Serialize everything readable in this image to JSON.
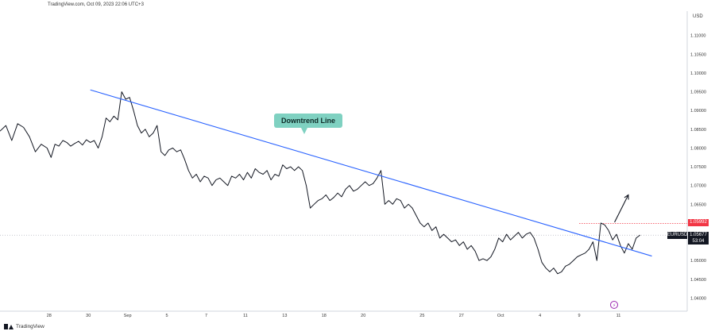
{
  "header": {
    "watermark": "TradingView.com, Oct 09, 2023 22:06 UTC+3"
  },
  "footer": {
    "logo_text": "TradingView"
  },
  "annotation": {
    "trendline_label": "Downtrend Line"
  },
  "price_tags": {
    "resistance": "1.05992",
    "symbol": "EURUSD",
    "current_price": "1.05677",
    "countdown": "53:04"
  },
  "colors": {
    "price_line": "#131722",
    "trendline": "#2962ff",
    "callout": "#7fd1c1",
    "resistance": "#f23645",
    "axis_text": "#333333"
  },
  "chart_data": {
    "type": "line",
    "currency": "USD",
    "y_ticks": [
      "1.11000",
      "1.10500",
      "1.10000",
      "1.09500",
      "1.09000",
      "1.08500",
      "1.08000",
      "1.07500",
      "1.07000",
      "1.06500",
      "1.06000",
      "1.05500",
      "1.05000",
      "1.04500",
      "1.04000"
    ],
    "ylim": [
      1.0365,
      1.1165
    ],
    "x_ticks": [
      "28",
      "30",
      "Sep",
      "5",
      "7",
      "11",
      "13",
      "18",
      "20",
      "25",
      "27",
      "Oct",
      "4",
      "9",
      "11"
    ],
    "x_tick_index": [
      -7,
      -5,
      -3,
      -1,
      1,
      3,
      5,
      7,
      9,
      12,
      14,
      16,
      18,
      20,
      22
    ],
    "xlim": [
      -9.5,
      25.5
    ],
    "resistance_level": 1.05992,
    "current_price": 1.05677,
    "trendline": {
      "from": [
        -4.9,
        1.0955
      ],
      "to": [
        23.7,
        1.0512
      ]
    },
    "arrow": {
      "from": [
        21.8,
        1.0602
      ],
      "to": [
        22.5,
        1.0675
      ]
    },
    "series": [
      {
        "x": [
          -9.5,
          -9.2,
          -8.9,
          -8.6,
          -8.3,
          -8.0,
          -7.7,
          -7.4,
          -7.1,
          -6.9,
          -6.7,
          -6.5,
          -6.3,
          -6.1,
          -5.9,
          -5.7,
          -5.5,
          -5.3,
          -5.1,
          -4.9,
          -4.7,
          -4.5,
          -4.3,
          -4.1,
          -3.9,
          -3.7,
          -3.5,
          -3.3,
          -3.1,
          -2.9,
          -2.7,
          -2.5,
          -2.3,
          -2.1,
          -1.9,
          -1.7,
          -1.5,
          -1.3,
          -1.1,
          -0.9,
          -0.7,
          -0.5,
          -0.3,
          -0.1,
          0.1,
          0.3,
          0.5,
          0.7,
          0.9,
          1.1,
          1.3,
          1.5,
          1.7,
          1.9,
          2.1,
          2.3,
          2.5,
          2.7,
          2.9,
          3.1,
          3.3,
          3.5,
          3.7,
          3.9,
          4.1,
          4.3,
          4.5,
          4.7,
          4.9,
          5.1,
          5.3,
          5.5,
          5.7,
          5.9,
          6.1,
          6.3,
          6.5,
          6.7,
          6.9,
          7.1,
          7.3,
          7.5,
          7.7,
          7.9,
          8.1,
          8.3,
          8.5,
          8.7,
          8.9,
          9.1,
          9.3,
          9.5,
          9.7,
          9.9,
          10.1,
          10.3,
          10.5,
          10.7,
          10.9,
          11.1,
          11.3,
          11.5,
          11.7,
          11.9,
          12.1,
          12.3,
          12.5,
          12.7,
          12.9,
          13.1,
          13.3,
          13.5,
          13.7,
          13.9,
          14.1,
          14.3,
          14.5,
          14.7,
          14.9,
          15.1,
          15.3,
          15.5,
          15.7,
          15.9,
          16.1,
          16.3,
          16.5,
          16.7,
          16.9,
          17.1,
          17.3,
          17.5,
          17.7,
          17.9,
          18.1,
          18.3,
          18.5,
          18.7,
          18.9,
          19.1,
          19.3,
          19.5,
          19.7,
          19.9,
          20.1,
          20.3,
          20.5,
          20.7,
          20.9,
          21.1,
          21.3,
          21.5
        ],
        "y": [
          1.0845,
          1.086,
          1.082,
          1.0865,
          1.0855,
          1.083,
          1.079,
          1.081,
          1.08,
          1.0775,
          1.081,
          1.0805,
          1.082,
          1.0815,
          1.0805,
          1.0812,
          1.0818,
          1.0808,
          1.0822,
          1.0815,
          1.082,
          1.08,
          1.083,
          1.088,
          1.087,
          1.0885,
          1.0875,
          1.095,
          1.093,
          1.0935,
          1.09,
          1.086,
          1.084,
          1.085,
          1.083,
          1.084,
          1.086,
          1.079,
          1.078,
          1.0795,
          1.08,
          1.079,
          1.0795,
          1.077,
          1.074,
          1.072,
          1.073,
          1.071,
          1.0725,
          1.072,
          1.07,
          1.0715,
          1.072,
          1.071,
          1.07,
          1.0725,
          1.072,
          1.073,
          1.0715,
          1.0735,
          1.072,
          1.0745,
          1.0735,
          1.073,
          1.074,
          1.0715,
          1.073,
          1.0725,
          1.0755,
          1.0745,
          1.075,
          1.074,
          1.075,
          1.074,
          1.07,
          1.064,
          1.065,
          1.066,
          1.0665,
          1.0675,
          1.066,
          1.0668,
          1.068,
          1.067,
          1.069,
          1.07,
          1.0685,
          1.069,
          1.07,
          1.071,
          1.07,
          1.0705,
          1.072,
          1.074,
          1.065,
          1.066,
          1.065,
          1.0665,
          1.066,
          1.064,
          1.065,
          1.064,
          1.062,
          1.06,
          1.059,
          1.06,
          1.058,
          1.059,
          1.056,
          1.057,
          1.056,
          1.055,
          1.0555,
          1.054,
          1.055,
          1.053,
          1.054,
          1.0525,
          1.05,
          1.0505,
          1.05,
          1.051,
          1.053,
          1.056,
          1.055,
          1.057,
          1.0555,
          1.0565,
          1.0575,
          1.056,
          1.057,
          1.0575,
          1.056,
          1.053,
          1.0495,
          1.048,
          1.047,
          1.048,
          1.0465,
          1.047,
          1.0485,
          1.049,
          1.05,
          1.051,
          1.0515,
          1.052,
          1.053,
          1.055,
          1.05,
          1.06,
          1.0595,
          1.058
        ]
      },
      {
        "x": [
          21.5,
          21.7,
          21.9,
          22.1,
          22.3,
          22.5,
          22.7,
          22.9,
          23.1
        ],
        "y": [
          1.058,
          1.0555,
          1.057,
          1.054,
          1.052,
          1.0545,
          1.053,
          1.056,
          1.0568
        ]
      }
    ]
  }
}
